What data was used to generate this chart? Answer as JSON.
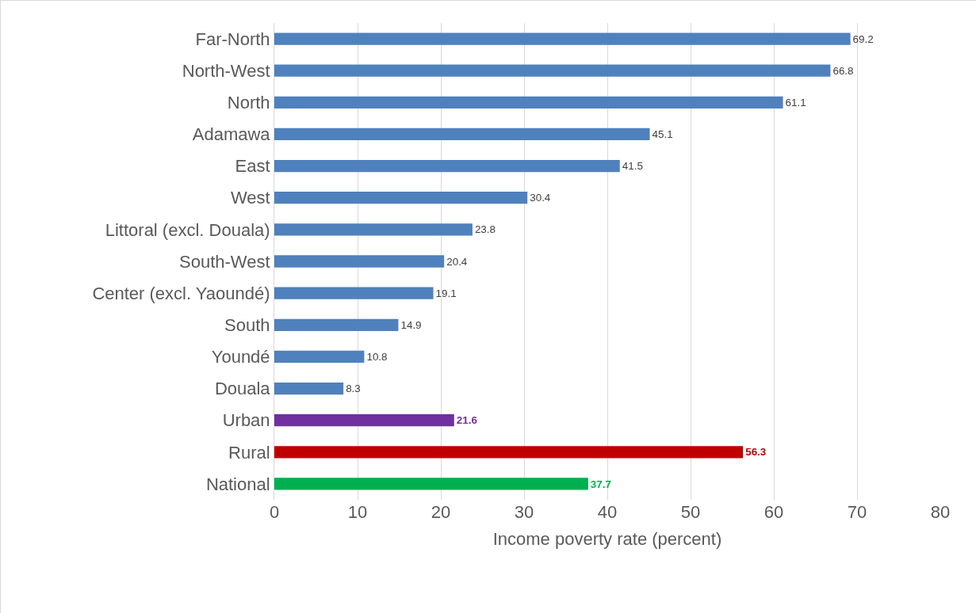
{
  "chart_data": {
    "type": "bar",
    "orientation": "horizontal",
    "xlabel": "Income poverty rate (percent)",
    "categories": [
      "Far-North",
      "North-West",
      "North",
      "Adamawa",
      "East",
      "West",
      "Littoral (excl. Douala)",
      "South-West",
      "Center (excl. Yaoundé)",
      "South",
      "Youndé",
      "Douala",
      "Urban",
      "Rural",
      "National"
    ],
    "values": [
      69.2,
      66.8,
      61.1,
      45.1,
      41.5,
      30.4,
      23.8,
      20.4,
      19.1,
      14.9,
      10.8,
      8.3,
      21.6,
      56.3,
      37.7
    ],
    "colors": [
      "#4f81bd",
      "#4f81bd",
      "#4f81bd",
      "#4f81bd",
      "#4f81bd",
      "#4f81bd",
      "#4f81bd",
      "#4f81bd",
      "#4f81bd",
      "#4f81bd",
      "#4f81bd",
      "#4f81bd",
      "#7030a0",
      "#c00000",
      "#00b050"
    ],
    "xlim": [
      0,
      80
    ],
    "xticks": [
      0,
      10,
      20,
      30,
      40,
      50,
      60,
      70,
      80
    ],
    "grid": "x",
    "data_labels": true
  }
}
